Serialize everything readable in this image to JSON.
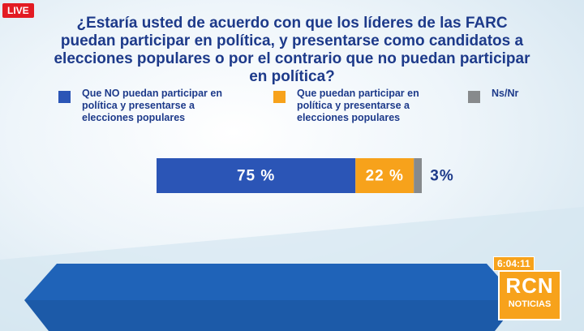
{
  "chart_data": {
    "type": "stacked-bar-horizontal",
    "title": "¿Estaría usted de acuerdo con que los líderes de las FARC puedan participar en política, y presentarse como candidatos a elecciones populares o por el contrario que no puedan participar en política?",
    "series": [
      {
        "name": "Que NO puedan participar en política y presentarse a elecciones populares",
        "color": "#2b55b6",
        "values": [
          75
        ],
        "value_labels": [
          "75 %"
        ]
      },
      {
        "name": "Que puedan participar en política y presentarse a elecciones populares",
        "color": "#f7a21b",
        "values": [
          22
        ],
        "value_labels": [
          "22 %"
        ]
      },
      {
        "name": "Ns/Nr",
        "color": "#878a8c",
        "values": [
          3
        ],
        "value_labels": [
          "3%"
        ]
      }
    ],
    "xlim": [
      0,
      100
    ]
  },
  "overlay": {
    "live": "LIVE",
    "clock": "6:04:11",
    "logo": "RCN",
    "logo_sub": "NOTICIAS"
  }
}
